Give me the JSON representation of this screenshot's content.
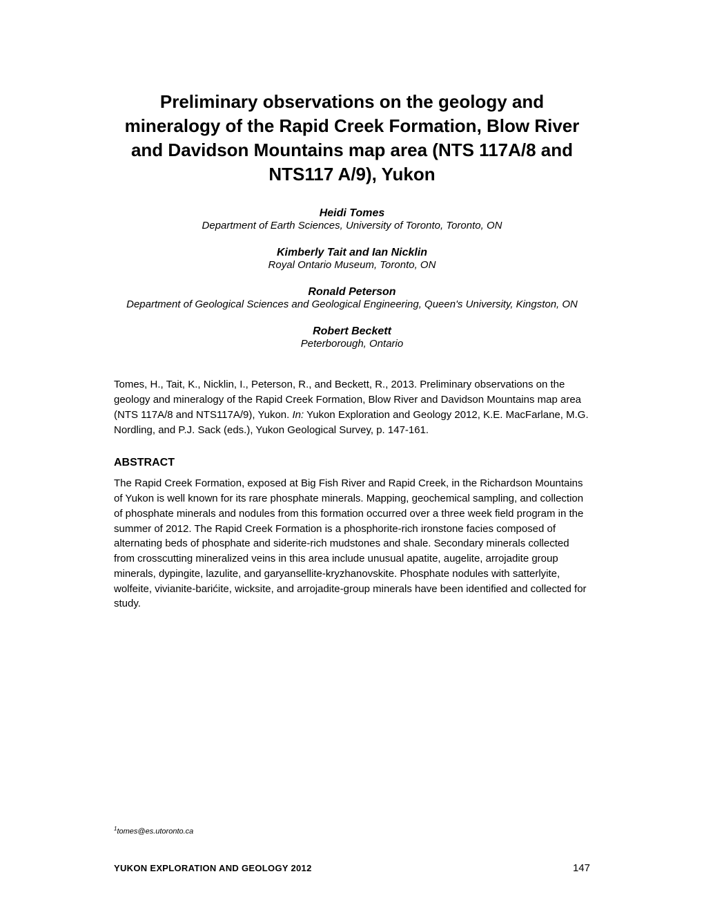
{
  "title": "Preliminary observations on the geology and mineralogy of the Rapid Creek Formation, Blow River and Davidson Mountains map area (NTS 117A/8 and NTS117 A/9), Yukon",
  "authors": [
    {
      "name": "Heidi Tomes",
      "affiliation": "Department of Earth Sciences, University of Toronto, Toronto, ON"
    },
    {
      "name": "Kimberly Tait and Ian Nicklin",
      "affiliation": "Royal Ontario Museum, Toronto, ON"
    },
    {
      "name": "Ronald Peterson",
      "affiliation": "Department of Geological Sciences and Geological Engineering, Queen's University, Kingston, ON"
    },
    {
      "name": "Robert Beckett",
      "affiliation": "Peterborough, Ontario"
    }
  ],
  "citation_pre": "Tomes, H., Tait, K., Nicklin, I., Peterson, R., and Beckett, R., 2013. Preliminary observations on the geology and mineralogy of the Rapid Creek Formation, Blow River and Davidson Mountains map area (NTS 117A/8 and NTS117A/9), Yukon. ",
  "citation_in": "In:",
  "citation_post": " Yukon Exploration and Geology 2012, K.E. MacFarlane, M.G. Nordling, and P.J. Sack (eds.), Yukon Geological Survey, p. 147-161.",
  "abstract_heading": "ABSTRACT",
  "abstract_body": "The Rapid Creek Formation, exposed at Big Fish River and Rapid Creek, in the Richardson Mountains of Yukon is well known for its rare phosphate minerals. Mapping, geochemical sampling, and collection of phosphate minerals and nodules from this formation occurred over a three week field program in the summer of 2012. The Rapid Creek Formation is a phosphorite-rich ironstone facies composed of alternating beds of phosphate and siderite-rich mudstones and shale. Secondary minerals collected from crosscutting mineralized veins in this area include unusual apatite, augelite, arrojadite group minerals, dypingite, lazulite, and garyansellite-kryzhanovskite. Phosphate nodules with satterlyite, wolfeite, vivianite-barićite, wicksite, and arrojadite-group minerals have been identified and collected for study.",
  "footer_email_sup": "1",
  "footer_email": "tomes@es.utoronto.ca",
  "footer_journal": "YUKON EXPLORATION AND GEOLOGY 2012",
  "footer_page": "147"
}
